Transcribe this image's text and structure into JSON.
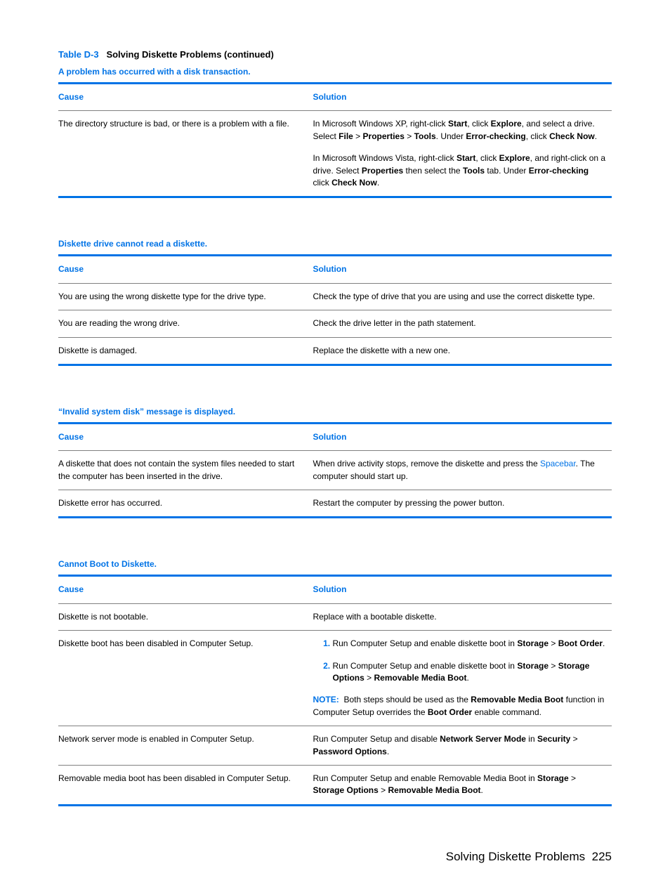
{
  "table_label": "Table D-3",
  "table_name": "Solving Diskette Problems (continued)",
  "header_cause": "Cause",
  "header_solution": "Solution",
  "section1": {
    "title": "A problem has occurred with a disk transaction.",
    "rows": [
      {
        "cause": "The directory structure is bad, or there is a problem with a file.",
        "solution_html": "<div class='para'>In Microsoft Windows XP, right-click <b>Start</b>, click <b>Explore</b>, and select a drive. Select <b>File</b> &gt; <b>Properties</b> &gt; <b>Tools</b>. Under <b>Error-checking</b>, click <b>Check Now</b>.</div><div>In Microsoft Windows Vista, right-click <b>Start</b>, click <b>Explore</b>, and right-click on a drive. Select <b>Properties</b> then select the <b>Tools</b> tab. Under <b>Error-checking</b> click <b>Check Now</b>.</div>"
      }
    ]
  },
  "section2": {
    "title": "Diskette drive cannot read a diskette.",
    "rows": [
      {
        "cause": "You are using the wrong diskette type for the drive type.",
        "solution": "Check the type of drive that you are using and use the correct diskette type."
      },
      {
        "cause": "You are reading the wrong drive.",
        "solution": "Check the drive letter in the path statement."
      },
      {
        "cause": "Diskette is damaged.",
        "solution": "Replace the diskette with a new one."
      }
    ]
  },
  "section3": {
    "title": "“Invalid system disk” message is displayed.",
    "rows": [
      {
        "cause": "A diskette that does not contain the system files needed to start the computer has been inserted in the drive.",
        "solution_html": "When drive activity stops, remove the diskette and press the <span class='blue'>Spacebar</span>. The computer should start up."
      },
      {
        "cause": "Diskette error has occurred.",
        "solution": "Restart the computer by pressing the power button."
      }
    ]
  },
  "section4": {
    "title": "Cannot Boot to Diskette.",
    "rows": [
      {
        "cause": "Diskette is not bootable.",
        "solution": "Replace with a bootable diskette."
      },
      {
        "cause": "Diskette boot has been disabled in Computer Setup.",
        "solution_html": "<ol class='blue-num'><li>Run Computer Setup and enable diskette boot in <b>Storage</b> &gt; <b>Boot Order</b>.</li><li>Run Computer Setup and enable diskette boot in <b>Storage</b> &gt; <b>Storage Options</b> &gt; <b>Removable Media Boot</b>.</li></ol><div class='note'><span class='note-label'>NOTE:</span>&nbsp;&nbsp;Both steps should be used as the <b>Removable Media Boot</b> function in Computer Setup overrides the <b>Boot Order</b> enable command.</div>"
      },
      {
        "cause": "Network server mode is enabled in Computer Setup.",
        "solution_html": "Run Computer Setup and disable <b>Network Server Mode</b> in <b>Security</b> &gt; <b>Password Options</b>."
      },
      {
        "cause": "Removable media boot has been disabled in Computer Setup.",
        "solution_html": "Run Computer Setup and enable Removable Media Boot in <b>Storage</b> &gt; <b>Storage Options</b> &gt; <b>Removable Media Boot</b>."
      }
    ]
  },
  "footer_text": "Solving Diskette Problems",
  "page_number": "225"
}
